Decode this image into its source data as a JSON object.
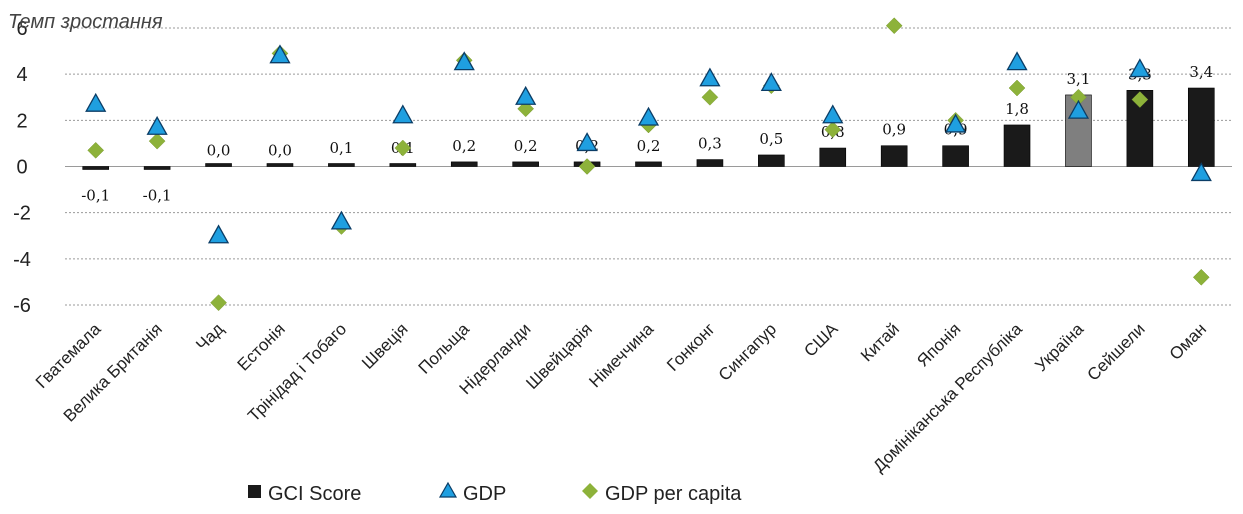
{
  "chart_data": {
    "type": "bar",
    "title": "",
    "ylabel": "Темп зростання",
    "xlabel": "",
    "ylim": [
      -6,
      6
    ],
    "yticks": [
      -6,
      -4,
      -2,
      0,
      2,
      4,
      6
    ],
    "grid": true,
    "legend_position": "bottom",
    "categories": [
      "Гватемала",
      "Велика Британія",
      "Чад",
      "Естонія",
      "Трінідад і Тобаго",
      "Швеція",
      "Польща",
      "Нідерланди",
      "Швейцарія",
      "Німеччина",
      "Гонконг",
      "Сингапур",
      "США",
      "Китай",
      "Японія",
      "Домініканська Республіка",
      "Україна",
      "Сейшели",
      "Оман"
    ],
    "series": [
      {
        "name": "GCI Score",
        "type": "bar",
        "color": "#1a1a1a",
        "highlight": {
          "index": 16,
          "color": "#7f7f7f"
        },
        "values": [
          -0.1,
          -0.1,
          0.0,
          0.0,
          0.1,
          0.1,
          0.2,
          0.2,
          0.2,
          0.2,
          0.3,
          0.5,
          0.8,
          0.9,
          0.9,
          1.8,
          3.1,
          3.3,
          3.4
        ],
        "labels": [
          "-0,1",
          "-0,1",
          "0,0",
          "0,0",
          "0,1",
          "0,1",
          "0,2",
          "0,2",
          "0,2",
          "0,2",
          "0,3",
          "0,5",
          "0,8",
          "0,9",
          "0,9",
          "1,8",
          "3,1",
          "3,3",
          "3,4"
        ]
      },
      {
        "name": "GDP",
        "type": "triangle",
        "color": "#1f9fe0",
        "values": [
          2.7,
          1.7,
          -3.0,
          4.8,
          -2.4,
          2.2,
          4.5,
          3.0,
          1.0,
          2.1,
          3.8,
          3.6,
          2.2,
          null,
          1.8,
          4.5,
          2.4,
          4.2,
          -0.3
        ]
      },
      {
        "name": "GDP per capita",
        "type": "diamond",
        "color": "#8db23a",
        "values": [
          0.7,
          1.1,
          -5.9,
          4.9,
          -2.6,
          0.8,
          4.6,
          2.5,
          0.0,
          1.8,
          3.0,
          3.5,
          1.6,
          6.1,
          2.0,
          3.4,
          3.0,
          2.9,
          -4.8
        ]
      }
    ]
  }
}
